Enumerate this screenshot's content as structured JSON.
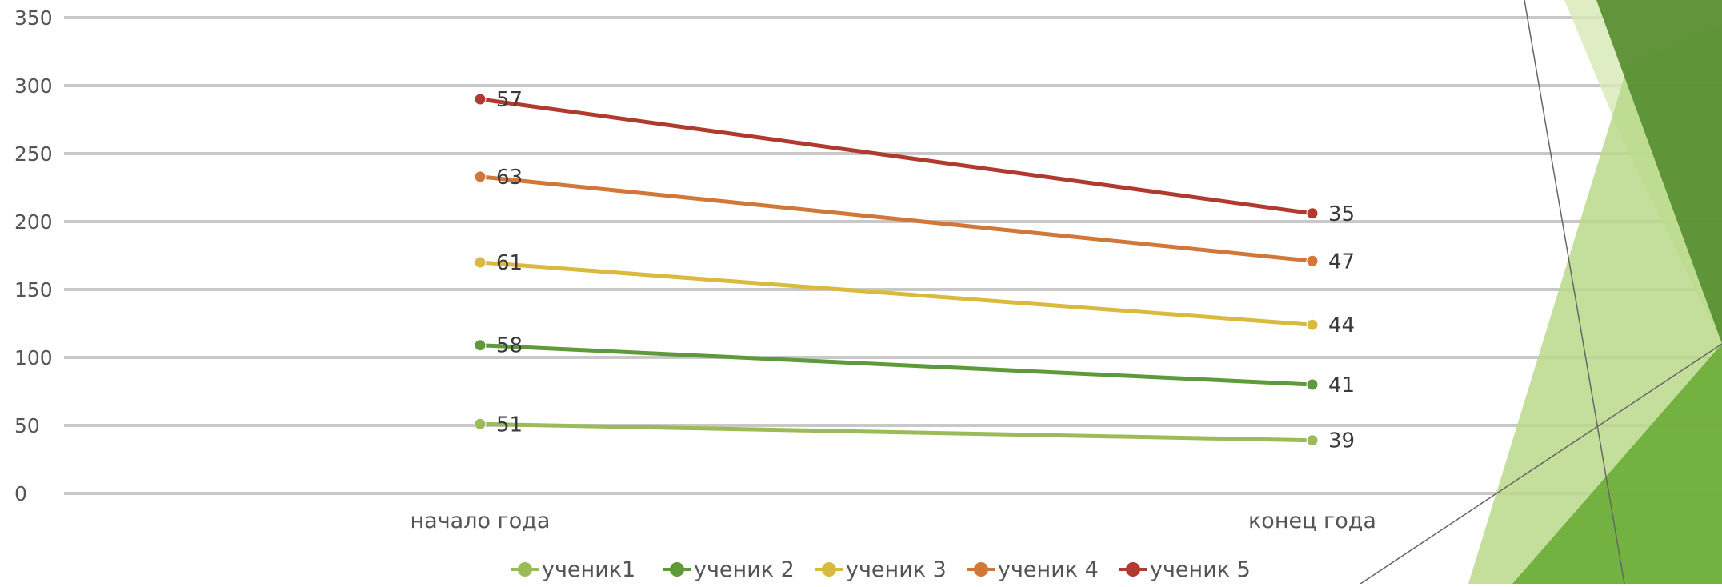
{
  "chart_data": {
    "type": "line",
    "stacked": true,
    "categories": [
      "начало года",
      "конец года"
    ],
    "series": [
      {
        "name": "ученик1",
        "values": [
          51,
          39
        ],
        "color": "#9bbb59"
      },
      {
        "name": "ученик 2",
        "values": [
          58,
          41
        ],
        "color": "#5f9a3a"
      },
      {
        "name": "ученик 3",
        "values": [
          61,
          44
        ],
        "color": "#d9b93e"
      },
      {
        "name": "ученик 4",
        "values": [
          63,
          47
        ],
        "color": "#d2773a"
      },
      {
        "name": "ученик 5",
        "values": [
          57,
          35
        ],
        "color": "#b03a2e"
      }
    ],
    "y_ticks": [
      "0",
      "50",
      "100",
      "150",
      "200",
      "250",
      "300",
      "350"
    ],
    "ylim": [
      0,
      350
    ],
    "grid": true,
    "legend_position": "bottom",
    "title": "",
    "xlabel": "",
    "ylabel": ""
  },
  "decoration": {
    "colors": [
      "#d6e8b4",
      "#b9d98a",
      "#8dc04f",
      "#6fae3c",
      "#5b8f34"
    ]
  }
}
